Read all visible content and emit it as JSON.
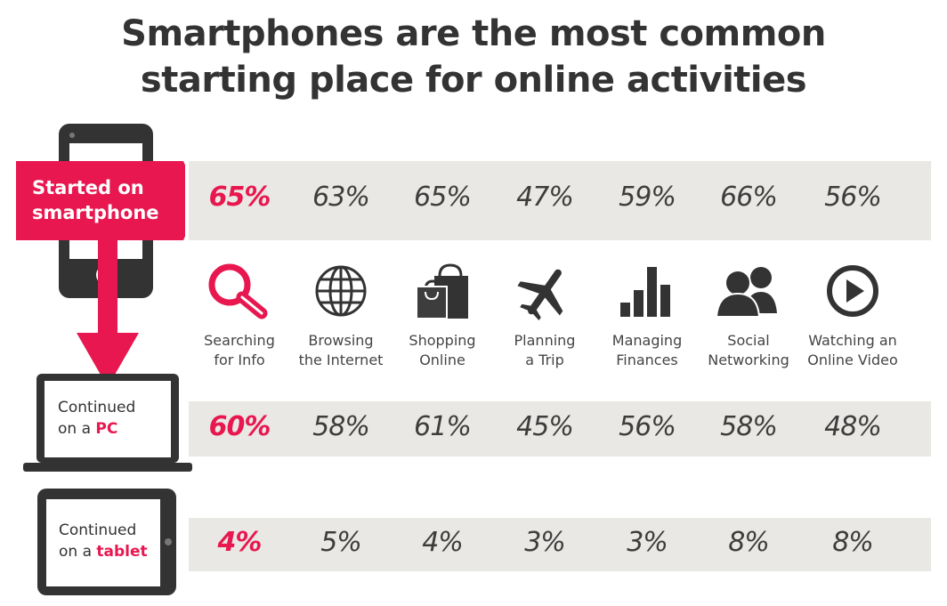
{
  "title_line1": "Smartphones are the most common",
  "title_line2": "starting place for online activities",
  "colors": {
    "accent": "#e8174f",
    "band": "#e9e8e4",
    "dark": "#333333"
  },
  "devices": {
    "smartphone": {
      "line1": "Started on",
      "line2": "smartphone"
    },
    "pc": {
      "line1": "Continued",
      "line2_prefix": "on a ",
      "line2_accent": "PC"
    },
    "tablet": {
      "line1": "Continued",
      "line2_prefix": "on a ",
      "line2_accent": "tablet"
    }
  },
  "chart_data": {
    "type": "table",
    "categories": [
      {
        "line1": "Searching",
        "line2": "for Info",
        "icon": "magnifier-icon"
      },
      {
        "line1": "Browsing",
        "line2": "the Internet",
        "icon": "globe-icon"
      },
      {
        "line1": "Shopping",
        "line2": "Online",
        "icon": "shopping-bag-icon"
      },
      {
        "line1": "Planning",
        "line2": "a Trip",
        "icon": "airplane-icon"
      },
      {
        "line1": "Managing",
        "line2": "Finances",
        "icon": "bar-chart-icon"
      },
      {
        "line1": "Social",
        "line2": "Networking",
        "icon": "people-icon"
      },
      {
        "line1": "Watching an",
        "line2": "Online Video",
        "icon": "play-button-icon"
      }
    ],
    "series": [
      {
        "name": "Started on smartphone",
        "values": [
          "65%",
          "63%",
          "65%",
          "47%",
          "59%",
          "66%",
          "56%"
        ]
      },
      {
        "name": "Continued on a PC",
        "values": [
          "60%",
          "58%",
          "61%",
          "45%",
          "56%",
          "58%",
          "48%"
        ]
      },
      {
        "name": "Continued on a tablet",
        "values": [
          "4%",
          "5%",
          "4%",
          "3%",
          "3%",
          "8%",
          "8%"
        ]
      }
    ]
  }
}
